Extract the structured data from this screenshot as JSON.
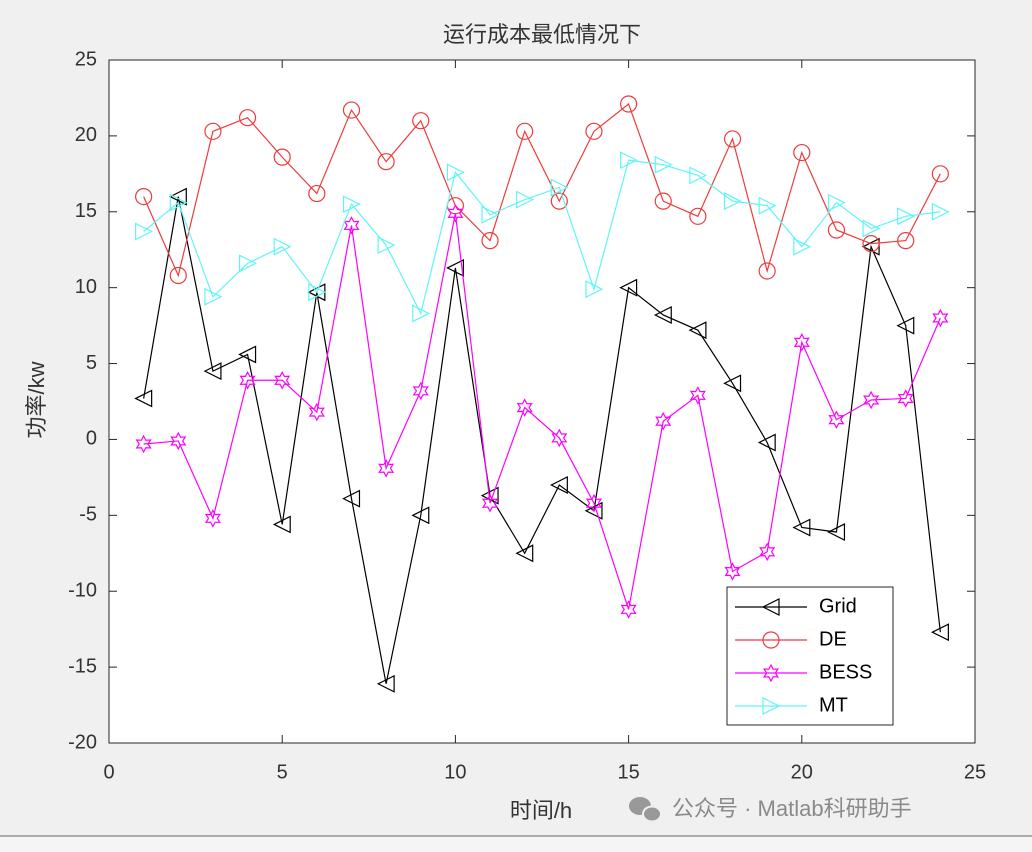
{
  "chart_data": {
    "type": "line",
    "title": "运行成本最低情况下",
    "xlabel": "时间/h",
    "ylabel": "功率/kw",
    "watermark": "公众号 · Matlab科研助手",
    "x": [
      1,
      2,
      3,
      4,
      5,
      6,
      7,
      8,
      9,
      10,
      11,
      12,
      13,
      14,
      15,
      16,
      17,
      18,
      19,
      20,
      21,
      22,
      23,
      24
    ],
    "xlim": [
      0,
      25
    ],
    "xticks": [
      0,
      5,
      10,
      15,
      20,
      25
    ],
    "ylim": [
      -20,
      25
    ],
    "yticks": [
      -20,
      -15,
      -10,
      -5,
      0,
      5,
      10,
      15,
      20,
      25
    ],
    "legend_position": "southeast",
    "series": [
      {
        "name": "Grid",
        "color": "#000000",
        "marker": "triangle-left",
        "values": [
          2.7,
          16.0,
          4.5,
          5.6,
          -5.6,
          9.7,
          -3.9,
          -16.1,
          -5.0,
          11.3,
          -3.7,
          -7.5,
          -3.0,
          -4.7,
          10.0,
          8.2,
          7.2,
          3.7,
          -0.2,
          -5.8,
          -6.1,
          12.7,
          7.5,
          -12.7
        ]
      },
      {
        "name": "DE",
        "color": "#ee3b3b",
        "marker": "circle",
        "values": [
          16.0,
          10.8,
          20.3,
          21.2,
          18.6,
          16.2,
          21.7,
          18.3,
          21.0,
          15.4,
          13.1,
          20.3,
          15.7,
          20.3,
          22.1,
          15.7,
          14.7,
          19.8,
          11.1,
          18.9,
          13.8,
          12.9,
          13.1,
          17.5
        ]
      },
      {
        "name": "BESS",
        "color": "#ff00ff",
        "marker": "hexagram",
        "values": [
          -0.3,
          -0.1,
          -5.2,
          3.9,
          3.9,
          1.8,
          14.1,
          -1.9,
          3.2,
          14.9,
          -4.2,
          2.1,
          0.1,
          -4.2,
          -11.2,
          1.2,
          2.9,
          -8.7,
          -7.4,
          6.4,
          1.3,
          2.6,
          2.7,
          8.0
        ]
      },
      {
        "name": "MT",
        "color": "#5ff5f5",
        "marker": "triangle-right",
        "values": [
          13.7,
          15.6,
          9.4,
          11.6,
          12.7,
          9.7,
          15.5,
          12.8,
          8.3,
          17.6,
          14.8,
          15.8,
          16.6,
          9.9,
          18.4,
          18.1,
          17.4,
          15.7,
          15.4,
          12.7,
          15.6,
          13.9,
          14.7,
          15.0
        ]
      }
    ]
  }
}
